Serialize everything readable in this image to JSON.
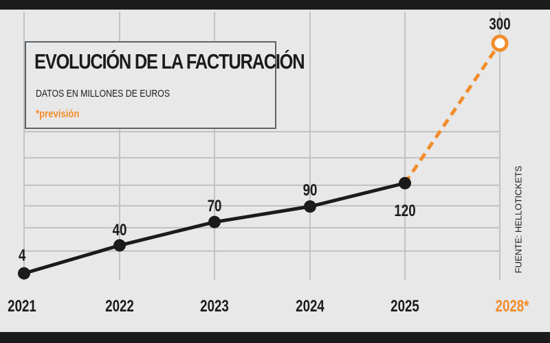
{
  "title": "EVOLUCIÓN DE LA FACTURACIÓN",
  "subtitle": "DATOS EN MILLONES DE EUROS",
  "note": "*previsión",
  "source": "FUENTE: HELLOTICKETS",
  "colors": {
    "line": "#1b1b1b",
    "forecast": "#f28d2c",
    "grid": "#c2c2c2",
    "background": "#e8e8e8"
  },
  "chart_data": {
    "type": "line",
    "categories": [
      "2021",
      "2022",
      "2023",
      "2024",
      "2025",
      "2028*"
    ],
    "series": [
      {
        "values": [
          4,
          40,
          70,
          90,
          120,
          null
        ]
      },
      {
        "values": [
          null,
          null,
          null,
          null,
          120,
          300
        ]
      }
    ],
    "data_labels": [
      "4",
      "40",
      "70",
      "90",
      "120",
      "300"
    ],
    "forecast_category": "2028*",
    "ylim": [
      0,
      300
    ],
    "grid": true
  }
}
